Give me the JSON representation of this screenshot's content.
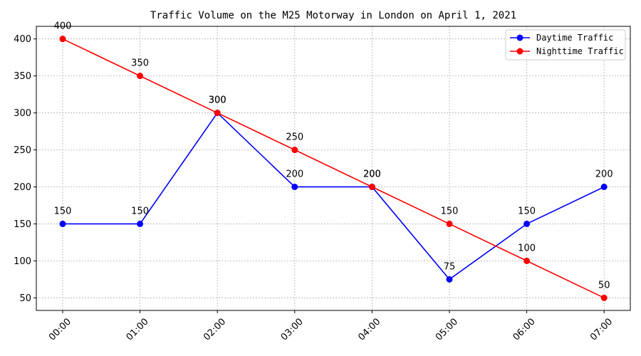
{
  "chart_data": {
    "type": "line",
    "title": "Traffic Volume on the M25 Motorway in London on April 1, 2021",
    "xlabel": "",
    "ylabel": "",
    "categories": [
      "00:00",
      "01:00",
      "02:00",
      "03:00",
      "04:00",
      "05:00",
      "06:00",
      "07:00"
    ],
    "yticks": [
      50,
      100,
      150,
      200,
      250,
      300,
      350,
      400
    ],
    "ylim": [
      33,
      417
    ],
    "grid": true,
    "legend_position": "top-right",
    "series": [
      {
        "name": "Daytime Traffic",
        "color": "#0000ff",
        "values": [
          150,
          150,
          300,
          200,
          200,
          75,
          150,
          200
        ]
      },
      {
        "name": "Nighttime Traffic",
        "color": "#ff0000",
        "values": [
          400,
          350,
          300,
          250,
          200,
          150,
          100,
          50
        ]
      }
    ]
  }
}
